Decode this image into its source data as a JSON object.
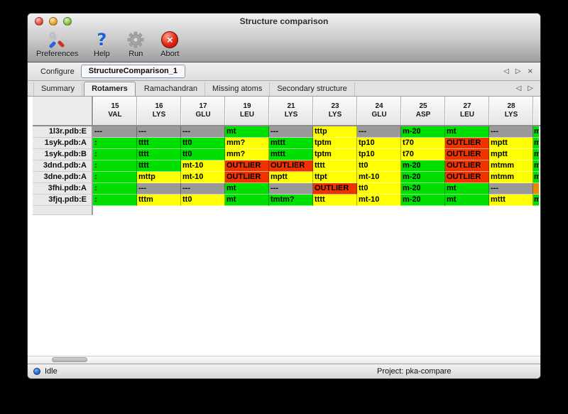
{
  "window": {
    "title": "Structure comparison"
  },
  "toolbar": {
    "buttons": [
      {
        "label": "Preferences",
        "icon": "preferences-tools-icon"
      },
      {
        "label": "Help",
        "icon": "help-question-icon",
        "glyph": "?"
      },
      {
        "label": "Run",
        "icon": "run-gear-icon"
      },
      {
        "label": "Abort",
        "icon": "abort-icon",
        "glyph": "×"
      }
    ]
  },
  "configure": {
    "label": "Configure",
    "value": "StructureComparison_1",
    "nav_back": "◁",
    "nav_forward": "▷",
    "nav_close": "×"
  },
  "tabs": {
    "items": [
      "Summary",
      "Rotamers",
      "Ramachandran",
      "Missing atoms",
      "Secondary structure"
    ],
    "active": "Rotamers",
    "nav_back": "◁",
    "nav_forward": "▷"
  },
  "colors": {
    "green": "#00e000",
    "yellow": "#ffff00",
    "red": "#ee3300",
    "gray": "#999999",
    "orange": "#ee8800"
  },
  "table": {
    "columns": [
      {
        "num": "15",
        "res": "VAL"
      },
      {
        "num": "16",
        "res": "LYS"
      },
      {
        "num": "17",
        "res": "GLU"
      },
      {
        "num": "19",
        "res": "LEU"
      },
      {
        "num": "21",
        "res": "LYS"
      },
      {
        "num": "23",
        "res": "LYS"
      },
      {
        "num": "24",
        "res": "GLU"
      },
      {
        "num": "25",
        "res": "ASP"
      },
      {
        "num": "27",
        "res": "LEU"
      },
      {
        "num": "28",
        "res": "LYS"
      }
    ],
    "rows": [
      {
        "label": "1l3r.pdb:E",
        "cells": [
          {
            "v": "---",
            "c": "gray"
          },
          {
            "v": "---",
            "c": "gray"
          },
          {
            "v": "---",
            "c": "gray"
          },
          {
            "v": "mt",
            "c": "green"
          },
          {
            "v": "---",
            "c": "gray"
          },
          {
            "v": "tttp",
            "c": "yellow"
          },
          {
            "v": "---",
            "c": "gray"
          },
          {
            "v": "m-20",
            "c": "green"
          },
          {
            "v": "mt",
            "c": "green"
          },
          {
            "v": "---",
            "c": "gray"
          }
        ],
        "partial": {
          "v": "m",
          "c": "green"
        }
      },
      {
        "label": "1syk.pdb:A",
        "cells": [
          {
            "v": ":",
            "c": "green"
          },
          {
            "v": "tttt",
            "c": "green"
          },
          {
            "v": "tt0",
            "c": "green"
          },
          {
            "v": "mm?",
            "c": "yellow"
          },
          {
            "v": "mttt",
            "c": "green"
          },
          {
            "v": "tptm",
            "c": "yellow"
          },
          {
            "v": "tp10",
            "c": "yellow"
          },
          {
            "v": "t70",
            "c": "yellow"
          },
          {
            "v": "OUTLIER",
            "c": "red"
          },
          {
            "v": "mptt",
            "c": "yellow"
          }
        ],
        "partial": {
          "v": "m",
          "c": "green"
        }
      },
      {
        "label": "1syk.pdb:B",
        "cells": [
          {
            "v": ":",
            "c": "green"
          },
          {
            "v": "tttt",
            "c": "green"
          },
          {
            "v": "tt0",
            "c": "green"
          },
          {
            "v": "mm?",
            "c": "yellow"
          },
          {
            "v": "mttt",
            "c": "green"
          },
          {
            "v": "tptm",
            "c": "yellow"
          },
          {
            "v": "tp10",
            "c": "yellow"
          },
          {
            "v": "t70",
            "c": "yellow"
          },
          {
            "v": "OUTLIER",
            "c": "red"
          },
          {
            "v": "mptt",
            "c": "yellow"
          }
        ],
        "partial": {
          "v": "m",
          "c": "green"
        }
      },
      {
        "label": "3dnd.pdb:A",
        "cells": [
          {
            "v": ":",
            "c": "green"
          },
          {
            "v": "tttt",
            "c": "green"
          },
          {
            "v": "mt-10",
            "c": "yellow"
          },
          {
            "v": "OUTLIER",
            "c": "red"
          },
          {
            "v": "OUTLIER",
            "c": "red"
          },
          {
            "v": "tttt",
            "c": "yellow"
          },
          {
            "v": "tt0",
            "c": "yellow"
          },
          {
            "v": "m-20",
            "c": "green"
          },
          {
            "v": "OUTLIER",
            "c": "red"
          },
          {
            "v": "mtmm",
            "c": "yellow"
          }
        ],
        "partial": {
          "v": "m",
          "c": "green"
        }
      },
      {
        "label": "3dne.pdb:A",
        "cells": [
          {
            "v": ":",
            "c": "green"
          },
          {
            "v": "mttp",
            "c": "yellow"
          },
          {
            "v": "mt-10",
            "c": "yellow"
          },
          {
            "v": "OUTLIER",
            "c": "red"
          },
          {
            "v": "mptt",
            "c": "yellow"
          },
          {
            "v": "ttpt",
            "c": "yellow"
          },
          {
            "v": "mt-10",
            "c": "yellow"
          },
          {
            "v": "m-20",
            "c": "green"
          },
          {
            "v": "OUTLIER",
            "c": "red"
          },
          {
            "v": "mtmm",
            "c": "yellow"
          }
        ],
        "partial": {
          "v": "m",
          "c": "green"
        }
      },
      {
        "label": "3fhi.pdb:A",
        "cells": [
          {
            "v": ":",
            "c": "green"
          },
          {
            "v": "---",
            "c": "gray"
          },
          {
            "v": "---",
            "c": "gray"
          },
          {
            "v": "mt",
            "c": "green"
          },
          {
            "v": "---",
            "c": "gray"
          },
          {
            "v": "OUTLIER",
            "c": "red"
          },
          {
            "v": "tt0",
            "c": "yellow"
          },
          {
            "v": "m-20",
            "c": "green"
          },
          {
            "v": "mt",
            "c": "green"
          },
          {
            "v": "---",
            "c": "gray"
          }
        ],
        "partial": {
          "v": "",
          "c": "orange"
        }
      },
      {
        "label": "3fjq.pdb:E",
        "cells": [
          {
            "v": ":",
            "c": "green"
          },
          {
            "v": "tttm",
            "c": "yellow"
          },
          {
            "v": "tt0",
            "c": "yellow"
          },
          {
            "v": "mt",
            "c": "green"
          },
          {
            "v": "tmtm?",
            "c": "green"
          },
          {
            "v": "tttt",
            "c": "yellow"
          },
          {
            "v": "mt-10",
            "c": "yellow"
          },
          {
            "v": "m-20",
            "c": "green"
          },
          {
            "v": "mt",
            "c": "green"
          },
          {
            "v": "mttt",
            "c": "yellow"
          }
        ],
        "partial": {
          "v": "m",
          "c": "green"
        }
      }
    ]
  },
  "statusbar": {
    "status": "Idle",
    "project": "Project: pka-compare"
  }
}
